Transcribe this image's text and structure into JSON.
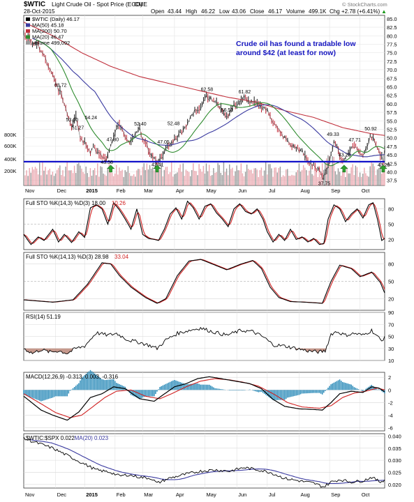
{
  "header": {
    "symbol": "$WTIC",
    "name": "Light Crude Oil - Spot Price (EOD)",
    "exchange": "CME",
    "date": "28-Oct-2015",
    "open_label": "Open",
    "open": "43.44",
    "high_label": "High",
    "high": "46.22",
    "low_label": "Low",
    "low": "43.06",
    "close_label": "Close",
    "close": "46.17",
    "volume_label": "Volume",
    "volume": "499.1K",
    "chg_label": "Chg",
    "chg": "+2.78 (+6.41%)",
    "chg_arrow": "▲",
    "watermark": "© StockCharts.com"
  },
  "annotation": {
    "line1": "Crude oil has found a tradable low",
    "line2": "around $42 (at least for now)"
  },
  "colors": {
    "price": "#000000",
    "ma50": "#3a3aa0",
    "ma200": "#c0303c",
    "ma20": "#2e8b2e",
    "volume": "#e9a6ae",
    "volume_alt": "#9a9a9a",
    "support": "#1010c8",
    "annotation": "#1515c0",
    "sto_k": "#000000",
    "sto_d": "#d02020",
    "macd": "#000000",
    "signal": "#d02020",
    "hist": "#2a8ab8",
    "ratio_ma": "#3a3aa0"
  },
  "x_axis": {
    "labels": [
      "Nov",
      "Dec",
      "2015",
      "Feb",
      "Mar",
      "Apr",
      "May",
      "Jun",
      "Jul",
      "Aug",
      "Sep",
      "Oct"
    ]
  },
  "chart_data": [
    {
      "type": "line",
      "panel": "price",
      "legend": [
        "$WTIC (Daily) 46.17",
        "MA(50) 45.18",
        "MA(200) 50.70",
        "MA(20) 46.47",
        "Volume 499,092"
      ],
      "ylim": [
        36,
        86
      ],
      "y_ticks": [
        "85.0",
        "82.5",
        "80.0",
        "77.5",
        "75.0",
        "72.5",
        "70.0",
        "67.5",
        "65.0",
        "62.5",
        "60.0",
        "57.5",
        "55.0",
        "52.5",
        "50.0",
        "47.5",
        "45.0",
        "42.5",
        "40.0",
        "37.5"
      ],
      "volume_ticks": [
        "800K",
        "600K",
        "400K",
        "200K"
      ],
      "support_level": 43,
      "price_labels": [
        "63.72",
        "53.60",
        "51.27",
        "54.24",
        "43.58",
        "47.80",
        "52.40",
        "42.41",
        "47.05",
        "52.48",
        "62.58",
        "56.51",
        "61.82",
        "37.75",
        "49.33",
        "47.71",
        "43.26",
        "50.92",
        "43.20"
      ],
      "low_markers": [
        "Jan-29",
        "Mar-17",
        "Sep-08",
        "Oct-28"
      ]
    },
    {
      "type": "line",
      "panel": "full_sto_14_3_3",
      "legend": [
        "Full STO %K(14,3) %D(3) 18.00",
        "10.26"
      ],
      "ylim": [
        0,
        100
      ],
      "y_ticks": [
        "80",
        "50",
        "20"
      ]
    },
    {
      "type": "line",
      "panel": "full_sto_14_13_3",
      "legend": [
        "Full STO %K(14,13) %D(3) 28.98",
        "33.04"
      ],
      "ylim": [
        0,
        100
      ],
      "y_ticks": [
        "80",
        "50",
        "20"
      ]
    },
    {
      "type": "line",
      "panel": "rsi",
      "legend": [
        "RSI(14) 51.19"
      ],
      "ylim": [
        10,
        90
      ],
      "y_ticks": [
        "90",
        "70",
        "50",
        "30",
        "10"
      ]
    },
    {
      "type": "line",
      "panel": "macd",
      "legend": [
        "MACD(12,26,9) -0.313, 0.003, -0.316"
      ],
      "ylim": [
        -6.5,
        2.8
      ],
      "y_ticks": [
        "2",
        "0",
        "-2",
        "-4",
        "-6"
      ]
    },
    {
      "type": "line",
      "panel": "ratio",
      "legend": [
        "$WTIC:$SPX 0.022",
        "MA(20) 0.023"
      ],
      "ylim": [
        0.0185,
        0.041
      ],
      "y_ticks": [
        "0.040",
        "0.035",
        "0.030",
        "0.025",
        "0.020"
      ]
    }
  ]
}
